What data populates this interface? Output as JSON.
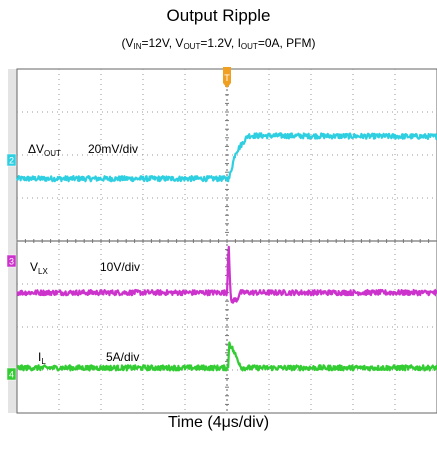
{
  "chart_data": {
    "type": "line",
    "title": "Output Ripple",
    "subtitle": {
      "prefix": "(V",
      "vin_sub": "IN",
      "vin_val": "=12V, V",
      "vout_sub": "OUT",
      "vout_val": "=1.2V, I",
      "iout_sub": "OUT",
      "iout_val": "=0A, PFM)"
    },
    "xlabel": "Time (4μs/div)",
    "grid": true,
    "x_divisions": 10,
    "y_divisions": 8,
    "trigger_marker": "T",
    "series": [
      {
        "name": "ΔVOUT",
        "label_main": "ΔV",
        "label_sub": "OUT",
        "scale": "20mV/div",
        "channel": "2",
        "color": "#2ecfe0",
        "baseline_div": 5.45,
        "points": [
          [
            0,
            0
          ],
          [
            5.05,
            0
          ],
          [
            5.2,
            0.6
          ],
          [
            5.5,
            1.0
          ],
          [
            10,
            0.98
          ]
        ]
      },
      {
        "name": "VLX",
        "label_main": "V",
        "label_sub": "LX",
        "scale": "10V/div",
        "channel": "3",
        "color": "#cc33cc",
        "baseline_div": 2.8,
        "points": [
          [
            0,
            0
          ],
          [
            5.0,
            0
          ],
          [
            5.04,
            1.2
          ],
          [
            5.08,
            0
          ],
          [
            5.1,
            -0.2
          ],
          [
            5.25,
            -0.15
          ],
          [
            5.3,
            0
          ],
          [
            10,
            0
          ]
        ]
      },
      {
        "name": "IL",
        "label_main": "I",
        "label_sub": "L",
        "scale": "5A/div",
        "channel": "4",
        "color": "#33cc33",
        "baseline_div": 1.05,
        "points": [
          [
            0,
            0
          ],
          [
            5.03,
            0
          ],
          [
            5.05,
            0.6
          ],
          [
            5.35,
            0
          ],
          [
            10,
            0
          ]
        ]
      }
    ]
  }
}
